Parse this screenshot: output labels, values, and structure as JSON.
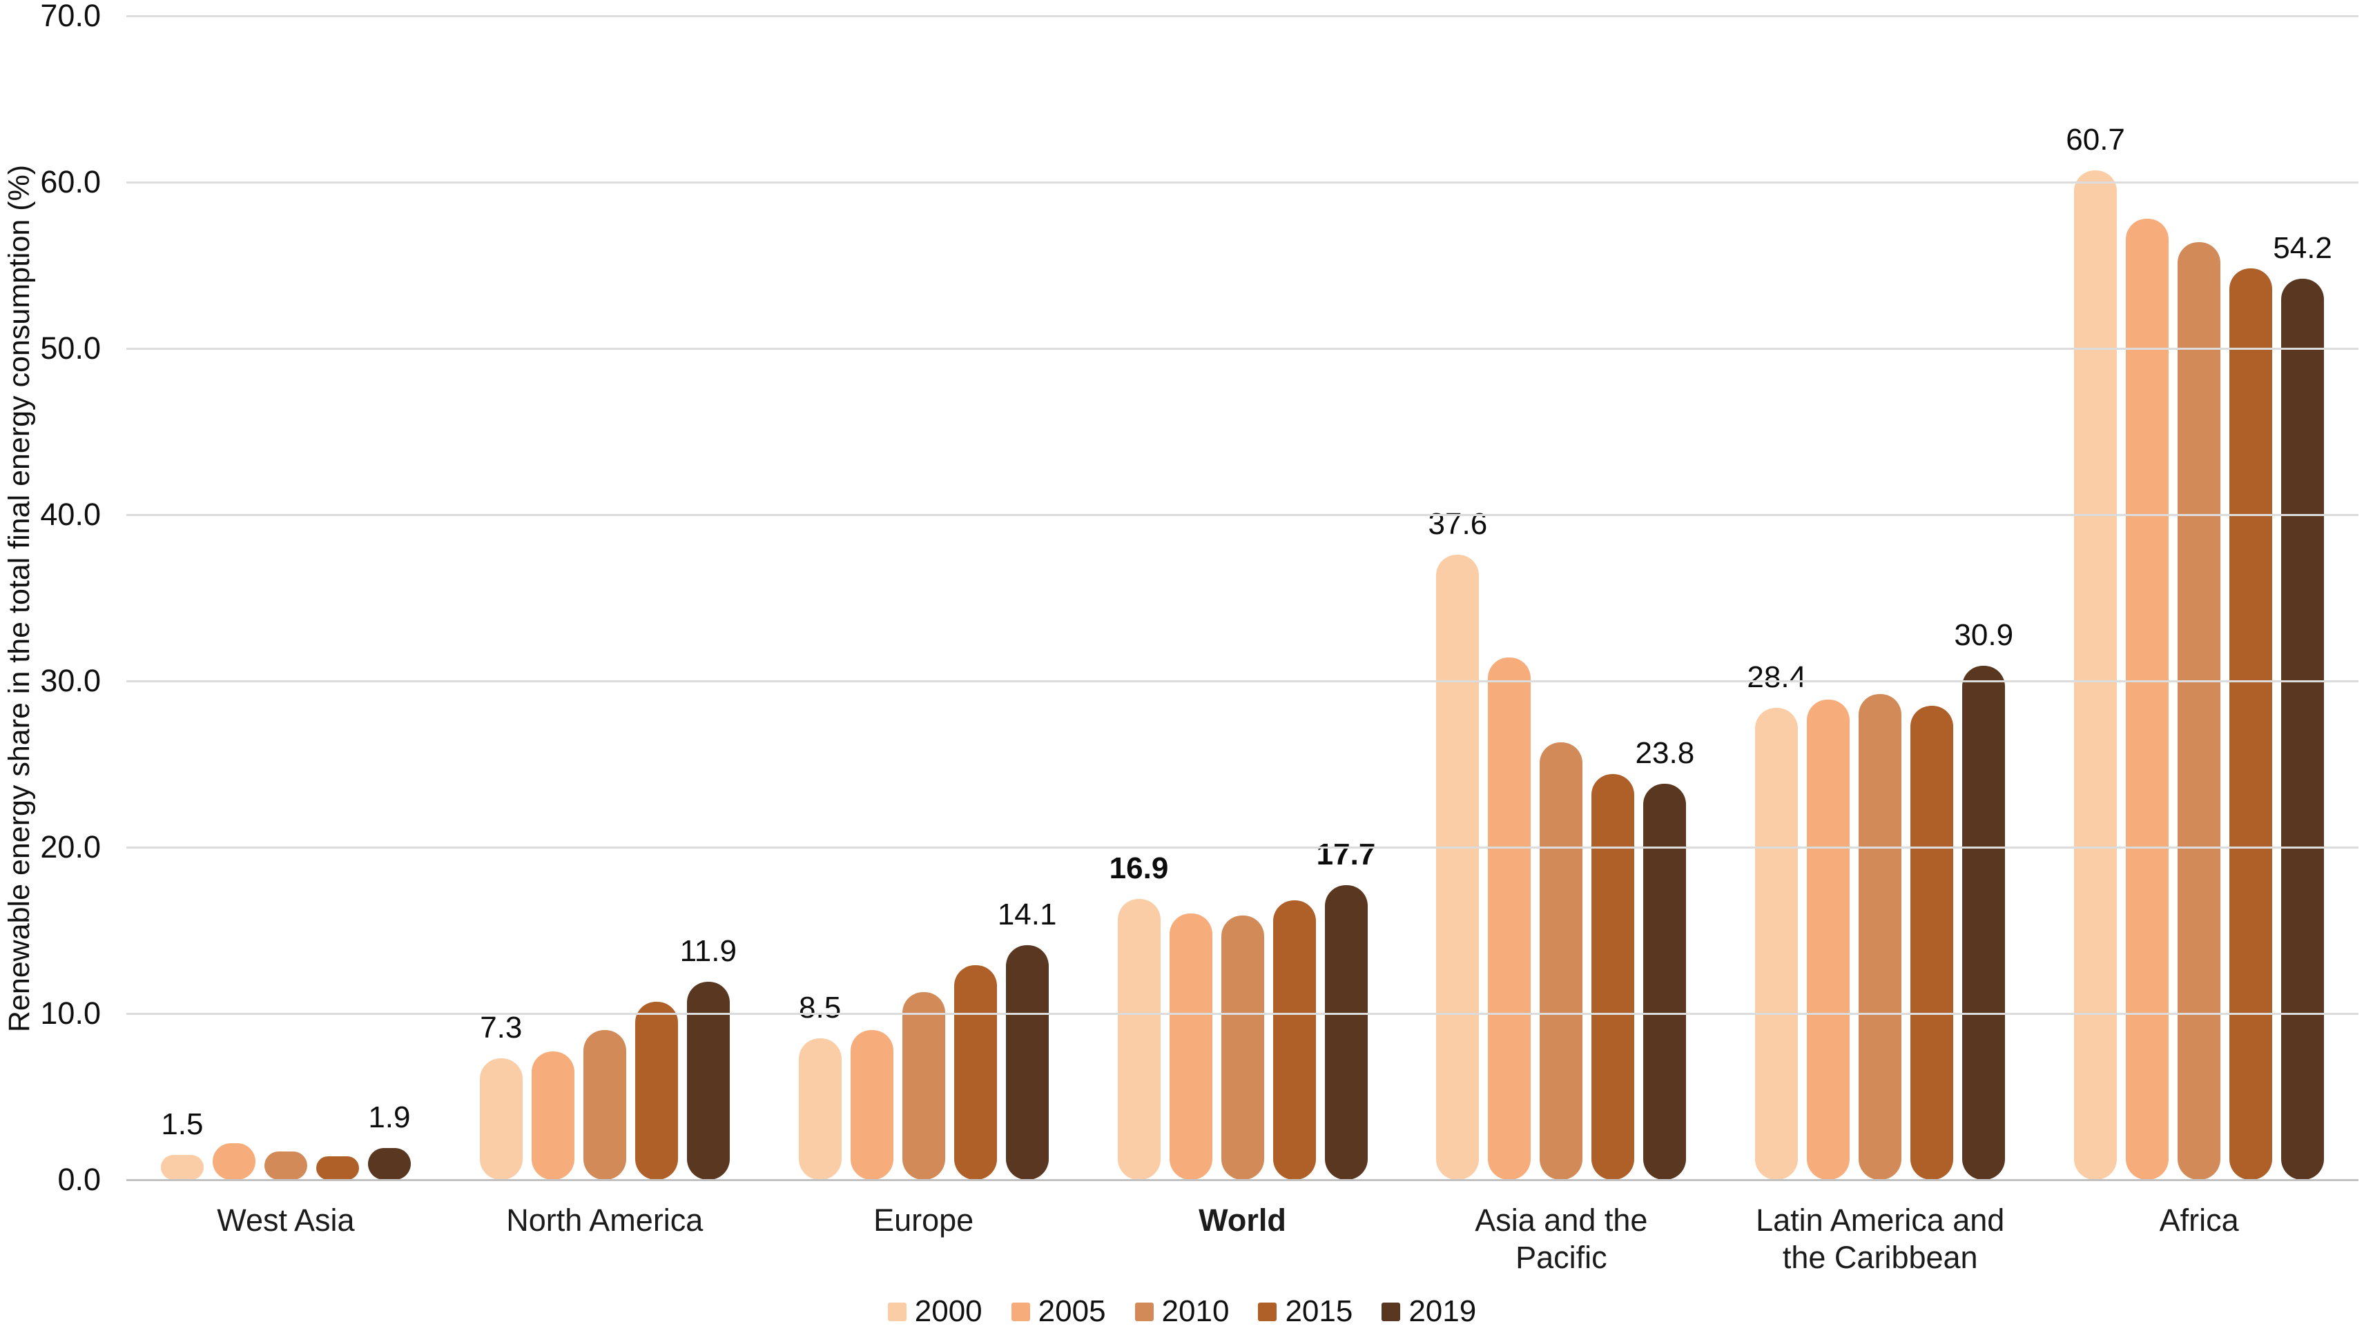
{
  "chart_data": {
    "type": "bar",
    "title": "",
    "ylabel": "Renewable energy share in the total final energy consumption (%)",
    "xlabel": "",
    "ylim": [
      0,
      70
    ],
    "yticks": [
      0,
      10,
      20,
      30,
      40,
      50,
      60,
      70
    ],
    "ytick_labels": [
      "0.0",
      "10.0",
      "20.0",
      "30.0",
      "40.0",
      "50.0",
      "60.0",
      "70.0"
    ],
    "grid": true,
    "legend_position": "bottom-center",
    "categories": [
      "West Asia",
      "North America",
      "Europe",
      "World",
      "Asia and the Pacific",
      "Latin America and the Caribbean",
      "Africa"
    ],
    "bold_categories": [
      "World"
    ],
    "series": [
      {
        "name": "2000",
        "color": "#FACDA6",
        "values": [
          1.5,
          7.3,
          8.5,
          16.9,
          37.6,
          28.4,
          60.7
        ]
      },
      {
        "name": "2005",
        "color": "#F7AC7B",
        "values": [
          2.2,
          7.7,
          9.0,
          16.0,
          31.4,
          28.9,
          57.8
        ]
      },
      {
        "name": "2010",
        "color": "#D18A58",
        "values": [
          1.7,
          9.0,
          11.3,
          15.9,
          26.3,
          29.2,
          56.4
        ]
      },
      {
        "name": "2015",
        "color": "#AF5F28",
        "values": [
          1.4,
          10.7,
          12.9,
          16.8,
          24.4,
          28.5,
          54.8
        ]
      },
      {
        "name": "2019",
        "color": "#593720",
        "values": [
          1.9,
          11.9,
          14.1,
          17.7,
          23.8,
          30.9,
          54.2
        ]
      }
    ],
    "value_labels": [
      {
        "series": "2000",
        "texts": [
          "1.5",
          "7.3",
          "8.5",
          "16.9",
          "37.6",
          "28.4",
          "60.7"
        ]
      },
      {
        "series": "2019",
        "texts": [
          "1.9",
          "11.9",
          "14.1",
          "17.7",
          "23.8",
          "30.9",
          "54.2"
        ]
      }
    ],
    "colors": {
      "gridline": "#DCDCDC",
      "baseline": "#C2C2C2",
      "text": "#0F0F0F"
    }
  }
}
